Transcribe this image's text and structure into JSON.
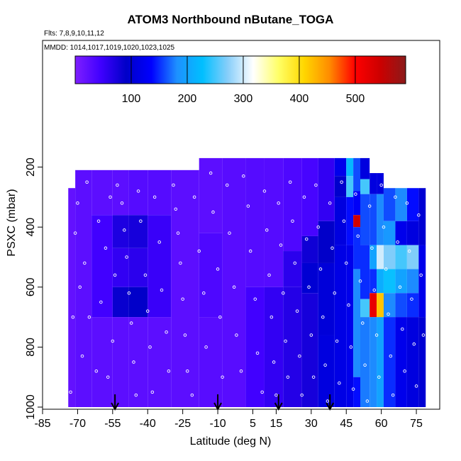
{
  "chart_data": {
    "type": "heatmap",
    "title": "ATOM3 Northbound nButane_TOGA",
    "subtitle_flights": "Flts: 7,8,9,10,11,12",
    "subtitle_dates": "MMDD: 1014,1017,1019,1020,1023,1025",
    "xlabel": "Latitude (deg N)",
    "ylabel": "PSXC (mbar)",
    "xlim": [
      -85,
      85
    ],
    "ylim": [
      1000,
      0
    ],
    "x_ticks": [
      "-85",
      "-70",
      "-55",
      "-40",
      "-25",
      "-10",
      "5",
      "15",
      "30",
      "45",
      "60",
      "75"
    ],
    "x_tick_values": [
      -85,
      -70,
      -55,
      -40,
      -25,
      -10,
      5,
      15,
      30,
      45,
      60,
      75
    ],
    "y_ticks": [
      "200",
      "400",
      "600",
      "800",
      "1000"
    ],
    "y_tick_values": [
      200,
      400,
      600,
      800,
      1000
    ],
    "colorbar": {
      "range": [
        0,
        590
      ],
      "ticks": [
        "100",
        "200",
        "300",
        "400",
        "500"
      ],
      "tick_values": [
        100,
        200,
        300,
        400,
        500
      ]
    },
    "arrows_lat": [
      -54,
      -10,
      16,
      38
    ],
    "columns": [
      {
        "lat0": -74,
        "lat1": -71,
        "top": 270,
        "bottom": 1000,
        "bands": [
          {
            "p0": 270,
            "p1": 1000,
            "v": 20
          }
        ]
      },
      {
        "lat0": -71,
        "lat1": -64,
        "top": 210,
        "bottom": 1000,
        "bands": [
          {
            "p0": 210,
            "p1": 1000,
            "v": 25
          }
        ]
      },
      {
        "lat0": -64,
        "lat1": -55,
        "top": 210,
        "bottom": 1000,
        "bands": [
          {
            "p0": 210,
            "p1": 360,
            "v": 25
          },
          {
            "p0": 360,
            "p1": 700,
            "v": 45
          },
          {
            "p0": 700,
            "p1": 1000,
            "v": 25
          }
        ]
      },
      {
        "lat0": -55,
        "lat1": -48,
        "top": 210,
        "bottom": 1000,
        "bands": [
          {
            "p0": 210,
            "p1": 360,
            "v": 25
          },
          {
            "p0": 360,
            "p1": 470,
            "v": 70
          },
          {
            "p0": 470,
            "p1": 600,
            "v": 55
          },
          {
            "p0": 600,
            "p1": 700,
            "v": 85
          },
          {
            "p0": 700,
            "p1": 1000,
            "v": 25
          }
        ]
      },
      {
        "lat0": -48,
        "lat1": -40,
        "top": 210,
        "bottom": 1000,
        "bands": [
          {
            "p0": 210,
            "p1": 360,
            "v": 30
          },
          {
            "p0": 360,
            "p1": 470,
            "v": 75
          },
          {
            "p0": 470,
            "p1": 600,
            "v": 60
          },
          {
            "p0": 600,
            "p1": 700,
            "v": 90
          },
          {
            "p0": 700,
            "p1": 1000,
            "v": 25
          }
        ]
      },
      {
        "lat0": -40,
        "lat1": -30,
        "top": 210,
        "bottom": 1000,
        "bands": [
          {
            "p0": 210,
            "p1": 360,
            "v": 30
          },
          {
            "p0": 360,
            "p1": 700,
            "v": 50
          },
          {
            "p0": 700,
            "p1": 1000,
            "v": 25
          }
        ]
      },
      {
        "lat0": -30,
        "lat1": -18,
        "top": 210,
        "bottom": 1000,
        "bands": [
          {
            "p0": 210,
            "p1": 1000,
            "v": 25
          }
        ]
      },
      {
        "lat0": -18,
        "lat1": -8,
        "top": 170,
        "bottom": 1000,
        "bands": [
          {
            "p0": 170,
            "p1": 420,
            "v": 25
          },
          {
            "p0": 420,
            "p1": 700,
            "v": 35
          },
          {
            "p0": 700,
            "p1": 1000,
            "v": 28
          }
        ]
      },
      {
        "lat0": -8,
        "lat1": 2,
        "top": 170,
        "bottom": 1000,
        "bands": [
          {
            "p0": 170,
            "p1": 1000,
            "v": 28
          }
        ]
      },
      {
        "lat0": 2,
        "lat1": 10,
        "top": 170,
        "bottom": 1000,
        "bands": [
          {
            "p0": 170,
            "p1": 600,
            "v": 30
          },
          {
            "p0": 600,
            "p1": 1000,
            "v": 45
          }
        ]
      },
      {
        "lat0": 10,
        "lat1": 18,
        "top": 170,
        "bottom": 1000,
        "bands": [
          {
            "p0": 170,
            "p1": 600,
            "v": 30
          },
          {
            "p0": 600,
            "p1": 1000,
            "v": 55
          }
        ]
      },
      {
        "lat0": 18,
        "lat1": 26,
        "top": 170,
        "bottom": 1000,
        "bands": [
          {
            "p0": 170,
            "p1": 480,
            "v": 35
          },
          {
            "p0": 480,
            "p1": 600,
            "v": 60
          },
          {
            "p0": 600,
            "p1": 1000,
            "v": 65
          }
        ]
      },
      {
        "lat0": 26,
        "lat1": 33,
        "top": 170,
        "bottom": 1000,
        "bands": [
          {
            "p0": 170,
            "p1": 430,
            "v": 40
          },
          {
            "p0": 430,
            "p1": 520,
            "v": 80
          },
          {
            "p0": 520,
            "p1": 620,
            "v": 100
          },
          {
            "p0": 620,
            "p1": 1000,
            "v": 75
          }
        ]
      },
      {
        "lat0": 33,
        "lat1": 40,
        "top": 170,
        "bottom": 1000,
        "bands": [
          {
            "p0": 170,
            "p1": 380,
            "v": 55
          },
          {
            "p0": 380,
            "p1": 520,
            "v": 90
          },
          {
            "p0": 520,
            "p1": 760,
            "v": 105
          },
          {
            "p0": 760,
            "p1": 1000,
            "v": 110
          }
        ]
      },
      {
        "lat0": 40,
        "lat1": 45,
        "top": 170,
        "bottom": 1000,
        "bands": [
          {
            "p0": 170,
            "p1": 230,
            "v": 120
          },
          {
            "p0": 230,
            "p1": 300,
            "v": 95
          },
          {
            "p0": 300,
            "p1": 460,
            "v": 110
          },
          {
            "p0": 460,
            "p1": 1000,
            "v": 115
          }
        ]
      },
      {
        "lat0": 45,
        "lat1": 48,
        "top": 170,
        "bottom": 1000,
        "bands": [
          {
            "p0": 170,
            "p1": 230,
            "v": 220
          },
          {
            "p0": 230,
            "p1": 300,
            "v": 250
          },
          {
            "p0": 300,
            "p1": 460,
            "v": 140
          },
          {
            "p0": 460,
            "p1": 1000,
            "v": 120
          }
        ]
      },
      {
        "lat0": 48,
        "lat1": 51,
        "top": 170,
        "bottom": 1000,
        "bands": [
          {
            "p0": 170,
            "p1": 280,
            "v": 160
          },
          {
            "p0": 280,
            "p1": 360,
            "v": 130
          },
          {
            "p0": 360,
            "p1": 400,
            "v": 540
          },
          {
            "p0": 400,
            "p1": 540,
            "v": 150
          },
          {
            "p0": 540,
            "p1": 900,
            "v": 180
          },
          {
            "p0": 900,
            "p1": 1000,
            "v": 140
          }
        ]
      },
      {
        "lat0": 51,
        "lat1": 55,
        "top": 170,
        "bottom": 1000,
        "bands": [
          {
            "p0": 170,
            "p1": 240,
            "v": 110
          },
          {
            "p0": 240,
            "p1": 290,
            "v": 250
          },
          {
            "p0": 290,
            "p1": 460,
            "v": 160
          },
          {
            "p0": 460,
            "p1": 640,
            "v": 150
          },
          {
            "p0": 640,
            "p1": 700,
            "v": 250
          },
          {
            "p0": 700,
            "p1": 1000,
            "v": 175
          }
        ]
      },
      {
        "lat0": 55,
        "lat1": 58,
        "top": 220,
        "bottom": 1000,
        "bands": [
          {
            "p0": 220,
            "p1": 290,
            "v": 110
          },
          {
            "p0": 290,
            "p1": 460,
            "v": 160
          },
          {
            "p0": 460,
            "p1": 540,
            "v": 200
          },
          {
            "p0": 540,
            "p1": 620,
            "v": 150
          },
          {
            "p0": 620,
            "p1": 700,
            "v": 520
          },
          {
            "p0": 700,
            "p1": 1000,
            "v": 180
          }
        ]
      },
      {
        "lat0": 58,
        "lat1": 61,
        "top": 220,
        "bottom": 1000,
        "bands": [
          {
            "p0": 220,
            "p1": 290,
            "v": 110
          },
          {
            "p0": 290,
            "p1": 460,
            "v": 180
          },
          {
            "p0": 460,
            "p1": 540,
            "v": 300
          },
          {
            "p0": 540,
            "p1": 620,
            "v": 210
          },
          {
            "p0": 620,
            "p1": 700,
            "v": 420
          },
          {
            "p0": 700,
            "p1": 1000,
            "v": 200
          }
        ]
      },
      {
        "lat0": 61,
        "lat1": 66,
        "top": 270,
        "bottom": 1000,
        "bands": [
          {
            "p0": 270,
            "p1": 380,
            "v": 160
          },
          {
            "p0": 380,
            "p1": 460,
            "v": 190
          },
          {
            "p0": 460,
            "p1": 540,
            "v": 270
          },
          {
            "p0": 540,
            "p1": 620,
            "v": 230
          },
          {
            "p0": 620,
            "p1": 700,
            "v": 180
          },
          {
            "p0": 700,
            "p1": 1000,
            "v": 150
          }
        ]
      },
      {
        "lat0": 66,
        "lat1": 71,
        "top": 270,
        "bottom": 1000,
        "bands": [
          {
            "p0": 270,
            "p1": 380,
            "v": 180
          },
          {
            "p0": 380,
            "p1": 460,
            "v": 120
          },
          {
            "p0": 460,
            "p1": 540,
            "v": 250
          },
          {
            "p0": 540,
            "p1": 620,
            "v": 200
          },
          {
            "p0": 620,
            "p1": 700,
            "v": 160
          },
          {
            "p0": 700,
            "p1": 1000,
            "v": 120
          }
        ]
      },
      {
        "lat0": 71,
        "lat1": 76,
        "top": 270,
        "bottom": 1000,
        "bands": [
          {
            "p0": 270,
            "p1": 380,
            "v": 140
          },
          {
            "p0": 380,
            "p1": 460,
            "v": 110
          },
          {
            "p0": 460,
            "p1": 540,
            "v": 270
          },
          {
            "p0": 540,
            "p1": 620,
            "v": 180
          },
          {
            "p0": 620,
            "p1": 700,
            "v": 150
          },
          {
            "p0": 700,
            "p1": 1000,
            "v": 110
          }
        ]
      },
      {
        "lat0": 76,
        "lat1": 79,
        "top": 270,
        "bottom": 1000,
        "bands": [
          {
            "p0": 270,
            "p1": 460,
            "v": 100
          },
          {
            "p0": 460,
            "p1": 700,
            "v": 120
          },
          {
            "p0": 700,
            "p1": 1000,
            "v": 100
          }
        ]
      }
    ],
    "points": [
      [
        -73,
        950
      ],
      [
        -72,
        700
      ],
      [
        -71,
        420
      ],
      [
        -70,
        320
      ],
      [
        -69,
        600
      ],
      [
        -68,
        830
      ],
      [
        -67,
        520
      ],
      [
        -66,
        250
      ],
      [
        -65,
        700
      ],
      [
        -62,
        880
      ],
      [
        -61,
        380
      ],
      [
        -60,
        650
      ],
      [
        -58,
        470
      ],
      [
        -57,
        900
      ],
      [
        -56,
        300
      ],
      [
        -55,
        780
      ],
      [
        -54,
        560
      ],
      [
        -53,
        260
      ],
      [
        -51,
        320
      ],
      [
        -50,
        410
      ],
      [
        -49,
        500
      ],
      [
        -48,
        620
      ],
      [
        -47,
        720
      ],
      [
        -46,
        850
      ],
      [
        -45,
        960
      ],
      [
        -44,
        280
      ],
      [
        -43,
        380
      ],
      [
        -41,
        560
      ],
      [
        -40,
        680
      ],
      [
        -39,
        800
      ],
      [
        -38,
        950
      ],
      [
        -37,
        300
      ],
      [
        -35,
        450
      ],
      [
        -34,
        610
      ],
      [
        -32,
        750
      ],
      [
        -31,
        880
      ],
      [
        -29,
        260
      ],
      [
        -28,
        340
      ],
      [
        -27,
        420
      ],
      [
        -26,
        520
      ],
      [
        -25,
        640
      ],
      [
        -24,
        760
      ],
      [
        -23,
        880
      ],
      [
        -21,
        960
      ],
      [
        -20,
        300
      ],
      [
        -18,
        480
      ],
      [
        -16,
        620
      ],
      [
        -15,
        800
      ],
      [
        -13,
        220
      ],
      [
        -12,
        350
      ],
      [
        -10,
        540
      ],
      [
        -9,
        700
      ],
      [
        -8,
        900
      ],
      [
        -6,
        260
      ],
      [
        -5,
        420
      ],
      [
        -3,
        600
      ],
      [
        -2,
        760
      ],
      [
        0,
        880
      ],
      [
        1,
        230
      ],
      [
        3,
        330
      ],
      [
        4,
        480
      ],
      [
        6,
        640
      ],
      [
        7,
        820
      ],
      [
        9,
        950
      ],
      [
        10,
        280
      ],
      [
        11,
        410
      ],
      [
        12,
        560
      ],
      [
        13,
        700
      ],
      [
        14,
        850
      ],
      [
        15,
        960
      ],
      [
        16,
        320
      ],
      [
        17,
        460
      ],
      [
        18,
        620
      ],
      [
        19,
        780
      ],
      [
        20,
        900
      ],
      [
        21,
        250
      ],
      [
        22,
        380
      ],
      [
        23,
        520
      ],
      [
        24,
        680
      ],
      [
        25,
        830
      ],
      [
        26,
        960
      ],
      [
        27,
        300
      ],
      [
        28,
        440
      ],
      [
        29,
        600
      ],
      [
        30,
        760
      ],
      [
        31,
        900
      ],
      [
        32,
        260
      ],
      [
        33,
        400
      ],
      [
        34,
        540
      ],
      [
        35,
        700
      ],
      [
        36,
        860
      ],
      [
        37,
        980
      ],
      [
        38,
        320
      ],
      [
        39,
        470
      ],
      [
        40,
        620
      ],
      [
        41,
        780
      ],
      [
        42,
        920
      ],
      [
        43,
        250
      ],
      [
        44,
        380
      ],
      [
        45,
        520
      ],
      [
        46,
        660
      ],
      [
        47,
        800
      ],
      [
        48,
        940
      ],
      [
        49,
        290
      ],
      [
        50,
        430
      ],
      [
        51,
        580
      ],
      [
        52,
        720
      ],
      [
        53,
        860
      ],
      [
        54,
        980
      ],
      [
        55,
        330
      ],
      [
        56,
        470
      ],
      [
        57,
        610
      ],
      [
        58,
        760
      ],
      [
        59,
        900
      ],
      [
        60,
        260
      ],
      [
        61,
        400
      ],
      [
        62,
        540
      ],
      [
        63,
        690
      ],
      [
        64,
        830
      ],
      [
        65,
        960
      ],
      [
        66,
        300
      ],
      [
        67,
        450
      ],
      [
        68,
        600
      ],
      [
        69,
        740
      ],
      [
        70,
        880
      ],
      [
        71,
        320
      ],
      [
        72,
        480
      ],
      [
        73,
        640
      ],
      [
        74,
        790
      ],
      [
        75,
        930
      ],
      [
        76,
        360
      ],
      [
        77,
        560
      ],
      [
        78,
        760
      ]
    ]
  },
  "colors": {
    "ramp": [
      "#7f1fff",
      "#4000ff",
      "#0000c8",
      "#0000ff",
      "#1e90ff",
      "#00bfff",
      "#87cefa",
      "#ffffff",
      "#ffff66",
      "#ffd700",
      "#ff8c00",
      "#ff0000",
      "#cc0000",
      "#8b1a1a"
    ]
  }
}
